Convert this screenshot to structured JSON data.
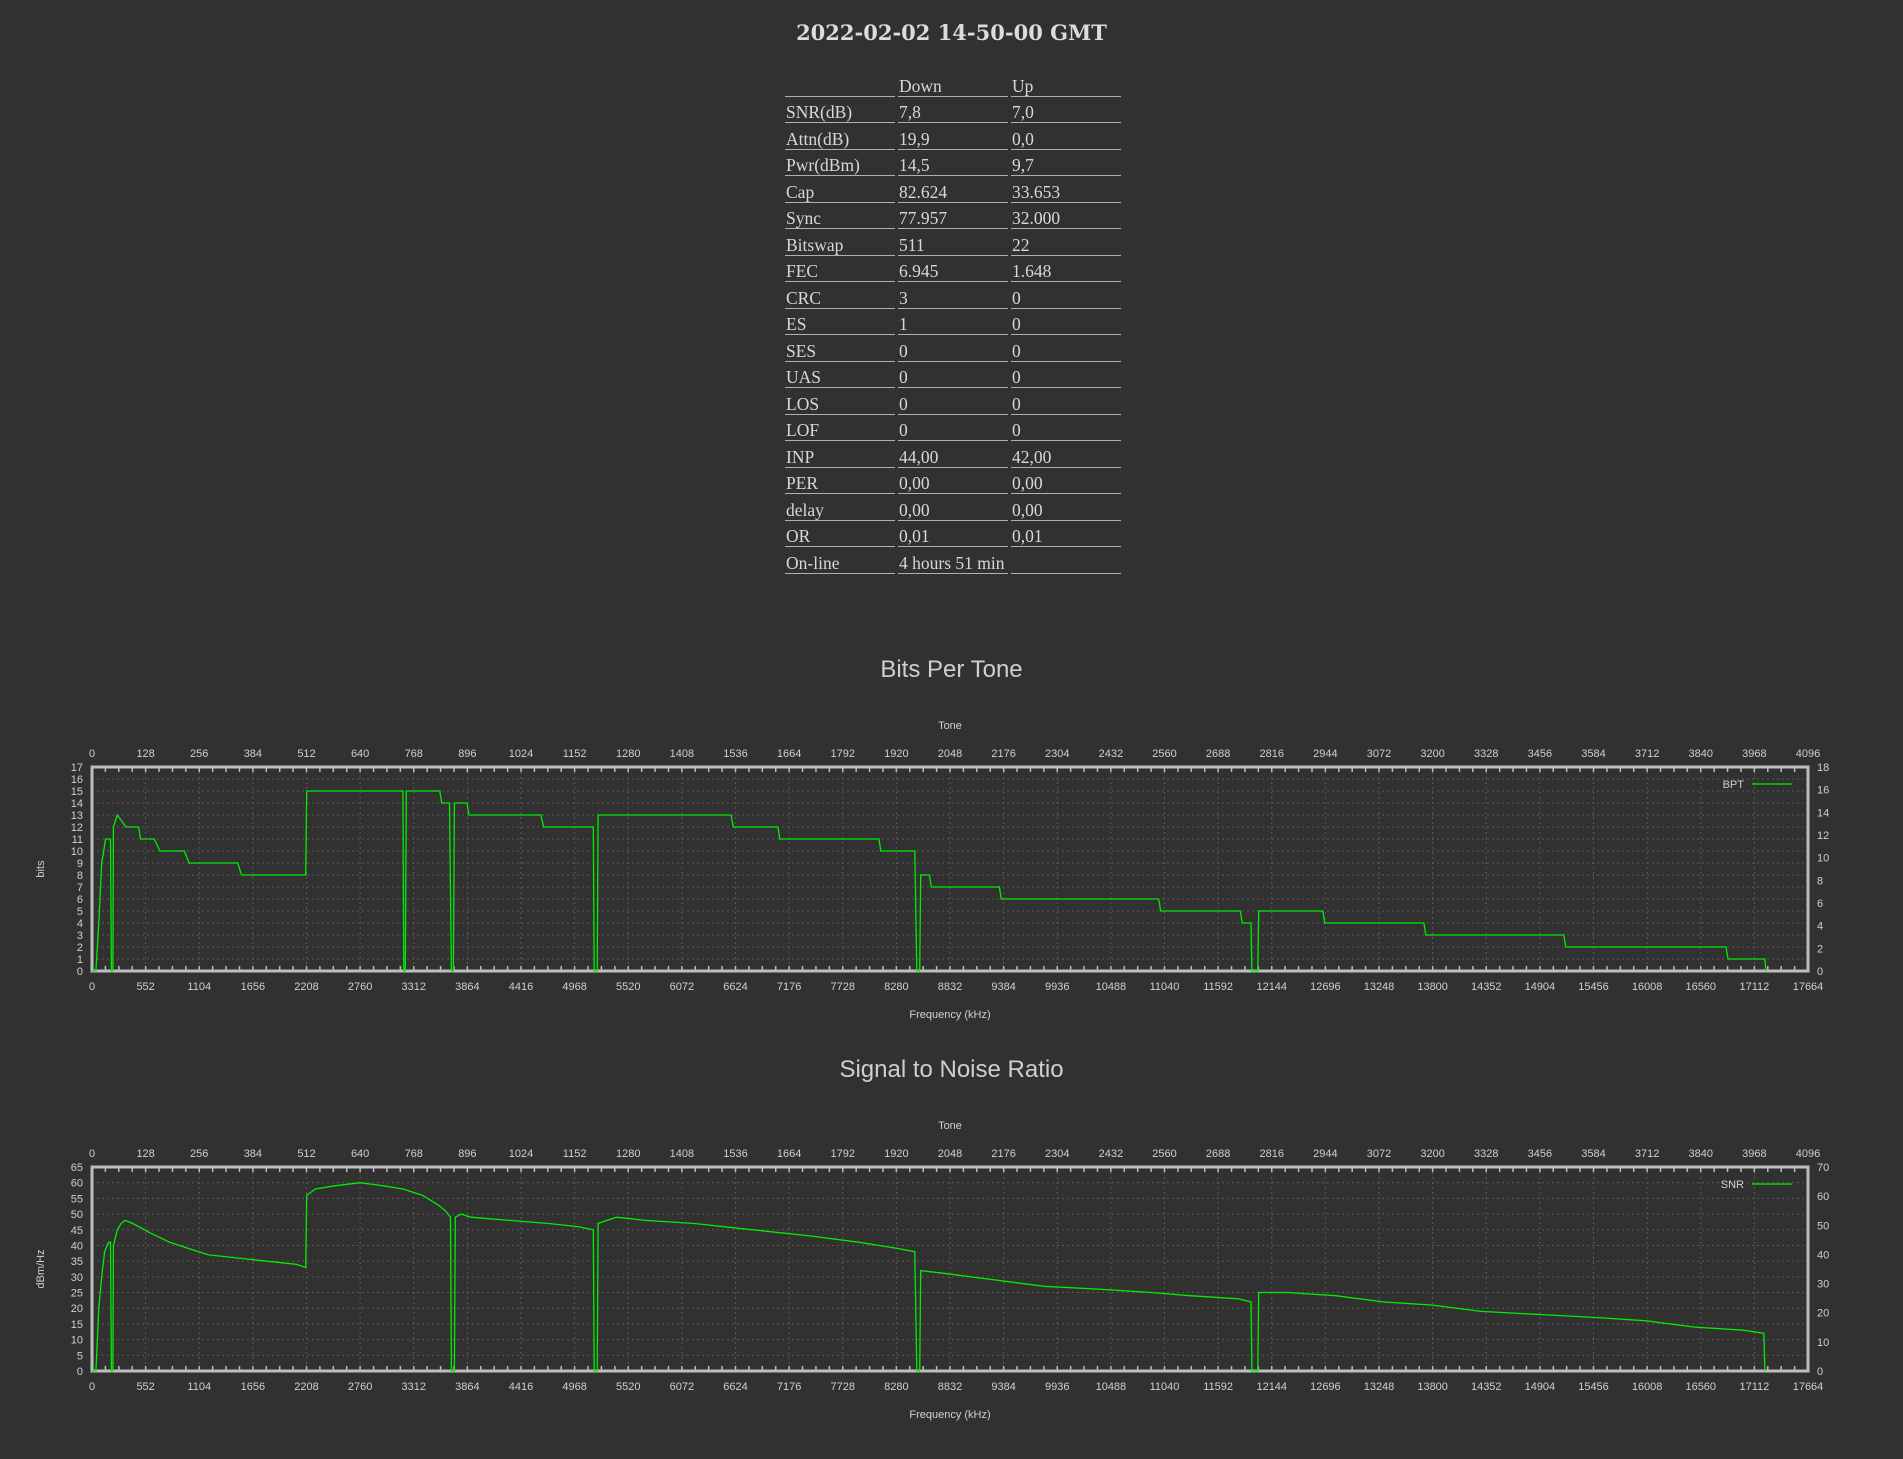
{
  "page": {
    "title": "2022-02-02 14-50-00 GMT"
  },
  "stats": {
    "headers": [
      "",
      "Down",
      "Up"
    ],
    "rows": [
      [
        "SNR(dB)",
        "7,8",
        "7,0"
      ],
      [
        "Attn(dB)",
        "19,9",
        "0,0"
      ],
      [
        "Pwr(dBm)",
        "14,5",
        "9,7"
      ],
      [
        "Cap",
        "82.624",
        "33.653"
      ],
      [
        "Sync",
        "77.957",
        "32.000"
      ],
      [
        "Bitswap",
        "511",
        "22"
      ],
      [
        "FEC",
        "6.945",
        "1.648"
      ],
      [
        "CRC",
        "3",
        "0"
      ],
      [
        "ES",
        "1",
        "0"
      ],
      [
        "SES",
        "0",
        "0"
      ],
      [
        "UAS",
        "0",
        "0"
      ],
      [
        "LOS",
        "0",
        "0"
      ],
      [
        "LOF",
        "0",
        "0"
      ],
      [
        "INP",
        "44,00",
        "42,00"
      ],
      [
        "PER",
        "0,00",
        "0,00"
      ],
      [
        "delay",
        "0,00",
        "0,00"
      ],
      [
        "OR",
        "0,01",
        "0,01"
      ],
      [
        "On-line",
        "4 hours 51 min",
        ""
      ]
    ]
  },
  "colors": {
    "background": "#313131",
    "series": "#00ee00",
    "frame": "#bdbdbd",
    "grid": "#5a5a5a",
    "text": "#d0d0d0"
  },
  "chart_data": [
    {
      "type": "line",
      "title": "Bits Per Tone",
      "xlabel": "Frequency (kHz)",
      "x2label": "Tone",
      "ylabel": "bits",
      "xlim": [
        0,
        17664
      ],
      "x2lim": [
        0,
        4096
      ],
      "ylim": [
        0,
        17
      ],
      "y2lim": [
        0,
        18
      ],
      "x_ticks": [
        0,
        552,
        1104,
        1656,
        2208,
        2760,
        3312,
        3864,
        4416,
        4968,
        5520,
        6072,
        6624,
        7176,
        7728,
        8280,
        8832,
        9384,
        9936,
        10488,
        11040,
        11592,
        12144,
        12696,
        13248,
        13800,
        14352,
        14904,
        15456,
        16008,
        16560,
        17112,
        17664
      ],
      "x2_ticks": [
        0,
        128,
        256,
        384,
        512,
        640,
        768,
        896,
        1024,
        1152,
        1280,
        1408,
        1536,
        1664,
        1792,
        1920,
        2048,
        2176,
        2304,
        2432,
        2560,
        2688,
        2816,
        2944,
        3072,
        3200,
        3328,
        3456,
        3584,
        3712,
        3840,
        3968,
        4096
      ],
      "y_ticks": [
        0,
        1,
        2,
        3,
        4,
        5,
        6,
        7,
        8,
        9,
        10,
        11,
        12,
        13,
        14,
        15,
        16,
        17
      ],
      "y2_ticks": [
        0,
        2,
        4,
        6,
        8,
        10,
        12,
        14,
        16,
        18
      ],
      "legend": "top-right",
      "grid": true,
      "series": [
        {
          "name": "BPT",
          "points": [
            [
              0,
              0
            ],
            [
              40,
              0
            ],
            [
              70,
              4
            ],
            [
              100,
              9
            ],
            [
              120,
              10
            ],
            [
              140,
              11
            ],
            [
              190,
              11
            ],
            [
              200,
              0
            ],
            [
              215,
              0
            ],
            [
              220,
              12
            ],
            [
              260,
              13
            ],
            [
              350,
              12
            ],
            [
              480,
              12
            ],
            [
              500,
              11
            ],
            [
              640,
              11
            ],
            [
              700,
              10
            ],
            [
              950,
              10
            ],
            [
              1000,
              9
            ],
            [
              1500,
              9
            ],
            [
              1540,
              8
            ],
            [
              2200,
              8
            ],
            [
              2210,
              15
            ],
            [
              3200,
              15
            ],
            [
              3210,
              0
            ],
            [
              3225,
              0
            ],
            [
              3235,
              15
            ],
            [
              3580,
              15
            ],
            [
              3600,
              14
            ],
            [
              3680,
              14
            ],
            [
              3700,
              0
            ],
            [
              3720,
              0
            ],
            [
              3730,
              14
            ],
            [
              3860,
              14
            ],
            [
              3880,
              13
            ],
            [
              4620,
              13
            ],
            [
              4650,
              12
            ],
            [
              5160,
              12
            ],
            [
              5170,
              0
            ],
            [
              5200,
              0
            ],
            [
              5210,
              13
            ],
            [
              6580,
              13
            ],
            [
              6600,
              12
            ],
            [
              7060,
              12
            ],
            [
              7080,
              11
            ],
            [
              8100,
              11
            ],
            [
              8120,
              10
            ],
            [
              8470,
              10
            ],
            [
              8490,
              0
            ],
            [
              8520,
              0
            ],
            [
              8530,
              8
            ],
            [
              8620,
              8
            ],
            [
              8640,
              7
            ],
            [
              9340,
              7
            ],
            [
              9360,
              6
            ],
            [
              10980,
              6
            ],
            [
              11000,
              5
            ],
            [
              11820,
              5
            ],
            [
              11840,
              4
            ],
            [
              11930,
              4
            ],
            [
              11940,
              0
            ],
            [
              12000,
              0
            ],
            [
              12010,
              5
            ],
            [
              12670,
              5
            ],
            [
              12690,
              4
            ],
            [
              13710,
              4
            ],
            [
              13730,
              3
            ],
            [
              15150,
              3
            ],
            [
              15170,
              2
            ],
            [
              16820,
              2
            ],
            [
              16840,
              1
            ],
            [
              17220,
              1
            ],
            [
              17230,
              0
            ]
          ]
        }
      ]
    },
    {
      "type": "line",
      "title": "Signal to Noise Ratio",
      "xlabel": "Frequency (kHz)",
      "x2label": "Tone",
      "ylabel": "dBm/Hz",
      "xlim": [
        0,
        17664
      ],
      "x2lim": [
        0,
        4096
      ],
      "ylim": [
        0,
        65
      ],
      "y2lim": [
        0,
        70
      ],
      "x_ticks": [
        0,
        552,
        1104,
        1656,
        2208,
        2760,
        3312,
        3864,
        4416,
        4968,
        5520,
        6072,
        6624,
        7176,
        7728,
        8280,
        8832,
        9384,
        9936,
        10488,
        11040,
        11592,
        12144,
        12696,
        13248,
        13800,
        14352,
        14904,
        15456,
        16008,
        16560,
        17112,
        17664
      ],
      "x2_ticks": [
        0,
        128,
        256,
        384,
        512,
        640,
        768,
        896,
        1024,
        1152,
        1280,
        1408,
        1536,
        1664,
        1792,
        1920,
        2048,
        2176,
        2304,
        2432,
        2560,
        2688,
        2816,
        2944,
        3072,
        3200,
        3328,
        3456,
        3584,
        3712,
        3840,
        3968,
        4096
      ],
      "y_ticks": [
        0,
        5,
        10,
        15,
        20,
        25,
        30,
        35,
        40,
        45,
        50,
        55,
        60,
        65
      ],
      "y2_ticks": [
        0,
        10,
        20,
        30,
        40,
        50,
        60,
        70
      ],
      "legend": "top-right",
      "grid": true,
      "series": [
        {
          "name": "SNR",
          "points": [
            [
              0,
              0
            ],
            [
              40,
              0
            ],
            [
              70,
              20
            ],
            [
              100,
              30
            ],
            [
              130,
              38
            ],
            [
              170,
              41
            ],
            [
              190,
              41
            ],
            [
              200,
              0
            ],
            [
              215,
              0
            ],
            [
              220,
              40
            ],
            [
              260,
              45
            ],
            [
              300,
              47
            ],
            [
              340,
              48
            ],
            [
              420,
              47
            ],
            [
              600,
              44
            ],
            [
              800,
              41
            ],
            [
              1000,
              39
            ],
            [
              1200,
              37
            ],
            [
              1500,
              36
            ],
            [
              1800,
              35
            ],
            [
              2100,
              34
            ],
            [
              2200,
              33
            ],
            [
              2210,
              56
            ],
            [
              2300,
              58
            ],
            [
              2500,
              59
            ],
            [
              2760,
              60
            ],
            [
              3000,
              59
            ],
            [
              3200,
              58
            ],
            [
              3400,
              56
            ],
            [
              3560,
              53
            ],
            [
              3640,
              51
            ],
            [
              3690,
              49
            ],
            [
              3700,
              0
            ],
            [
              3730,
              0
            ],
            [
              3740,
              49
            ],
            [
              3800,
              50
            ],
            [
              3900,
              49
            ],
            [
              4300,
              48
            ],
            [
              4700,
              47
            ],
            [
              5000,
              46
            ],
            [
              5160,
              45
            ],
            [
              5170,
              0
            ],
            [
              5200,
              0
            ],
            [
              5210,
              47
            ],
            [
              5300,
              48
            ],
            [
              5400,
              49
            ],
            [
              5700,
              48
            ],
            [
              6200,
              47
            ],
            [
              6800,
              45
            ],
            [
              7400,
              43
            ],
            [
              7900,
              41
            ],
            [
              8300,
              39
            ],
            [
              8470,
              38
            ],
            [
              8490,
              0
            ],
            [
              8520,
              0
            ],
            [
              8530,
              32
            ],
            [
              8800,
              31
            ],
            [
              9300,
              29
            ],
            [
              9800,
              27
            ],
            [
              10400,
              26
            ],
            [
              10900,
              25
            ],
            [
              11300,
              24
            ],
            [
              11800,
              23
            ],
            [
              11930,
              22
            ],
            [
              11940,
              0
            ],
            [
              12000,
              0
            ],
            [
              12010,
              25
            ],
            [
              12300,
              25
            ],
            [
              12800,
              24
            ],
            [
              13300,
              22
            ],
            [
              13800,
              21
            ],
            [
              14300,
              19
            ],
            [
              14900,
              18
            ],
            [
              15500,
              17
            ],
            [
              16000,
              16
            ],
            [
              16500,
              14
            ],
            [
              17000,
              13
            ],
            [
              17210,
              12
            ],
            [
              17220,
              0
            ]
          ]
        }
      ]
    }
  ]
}
